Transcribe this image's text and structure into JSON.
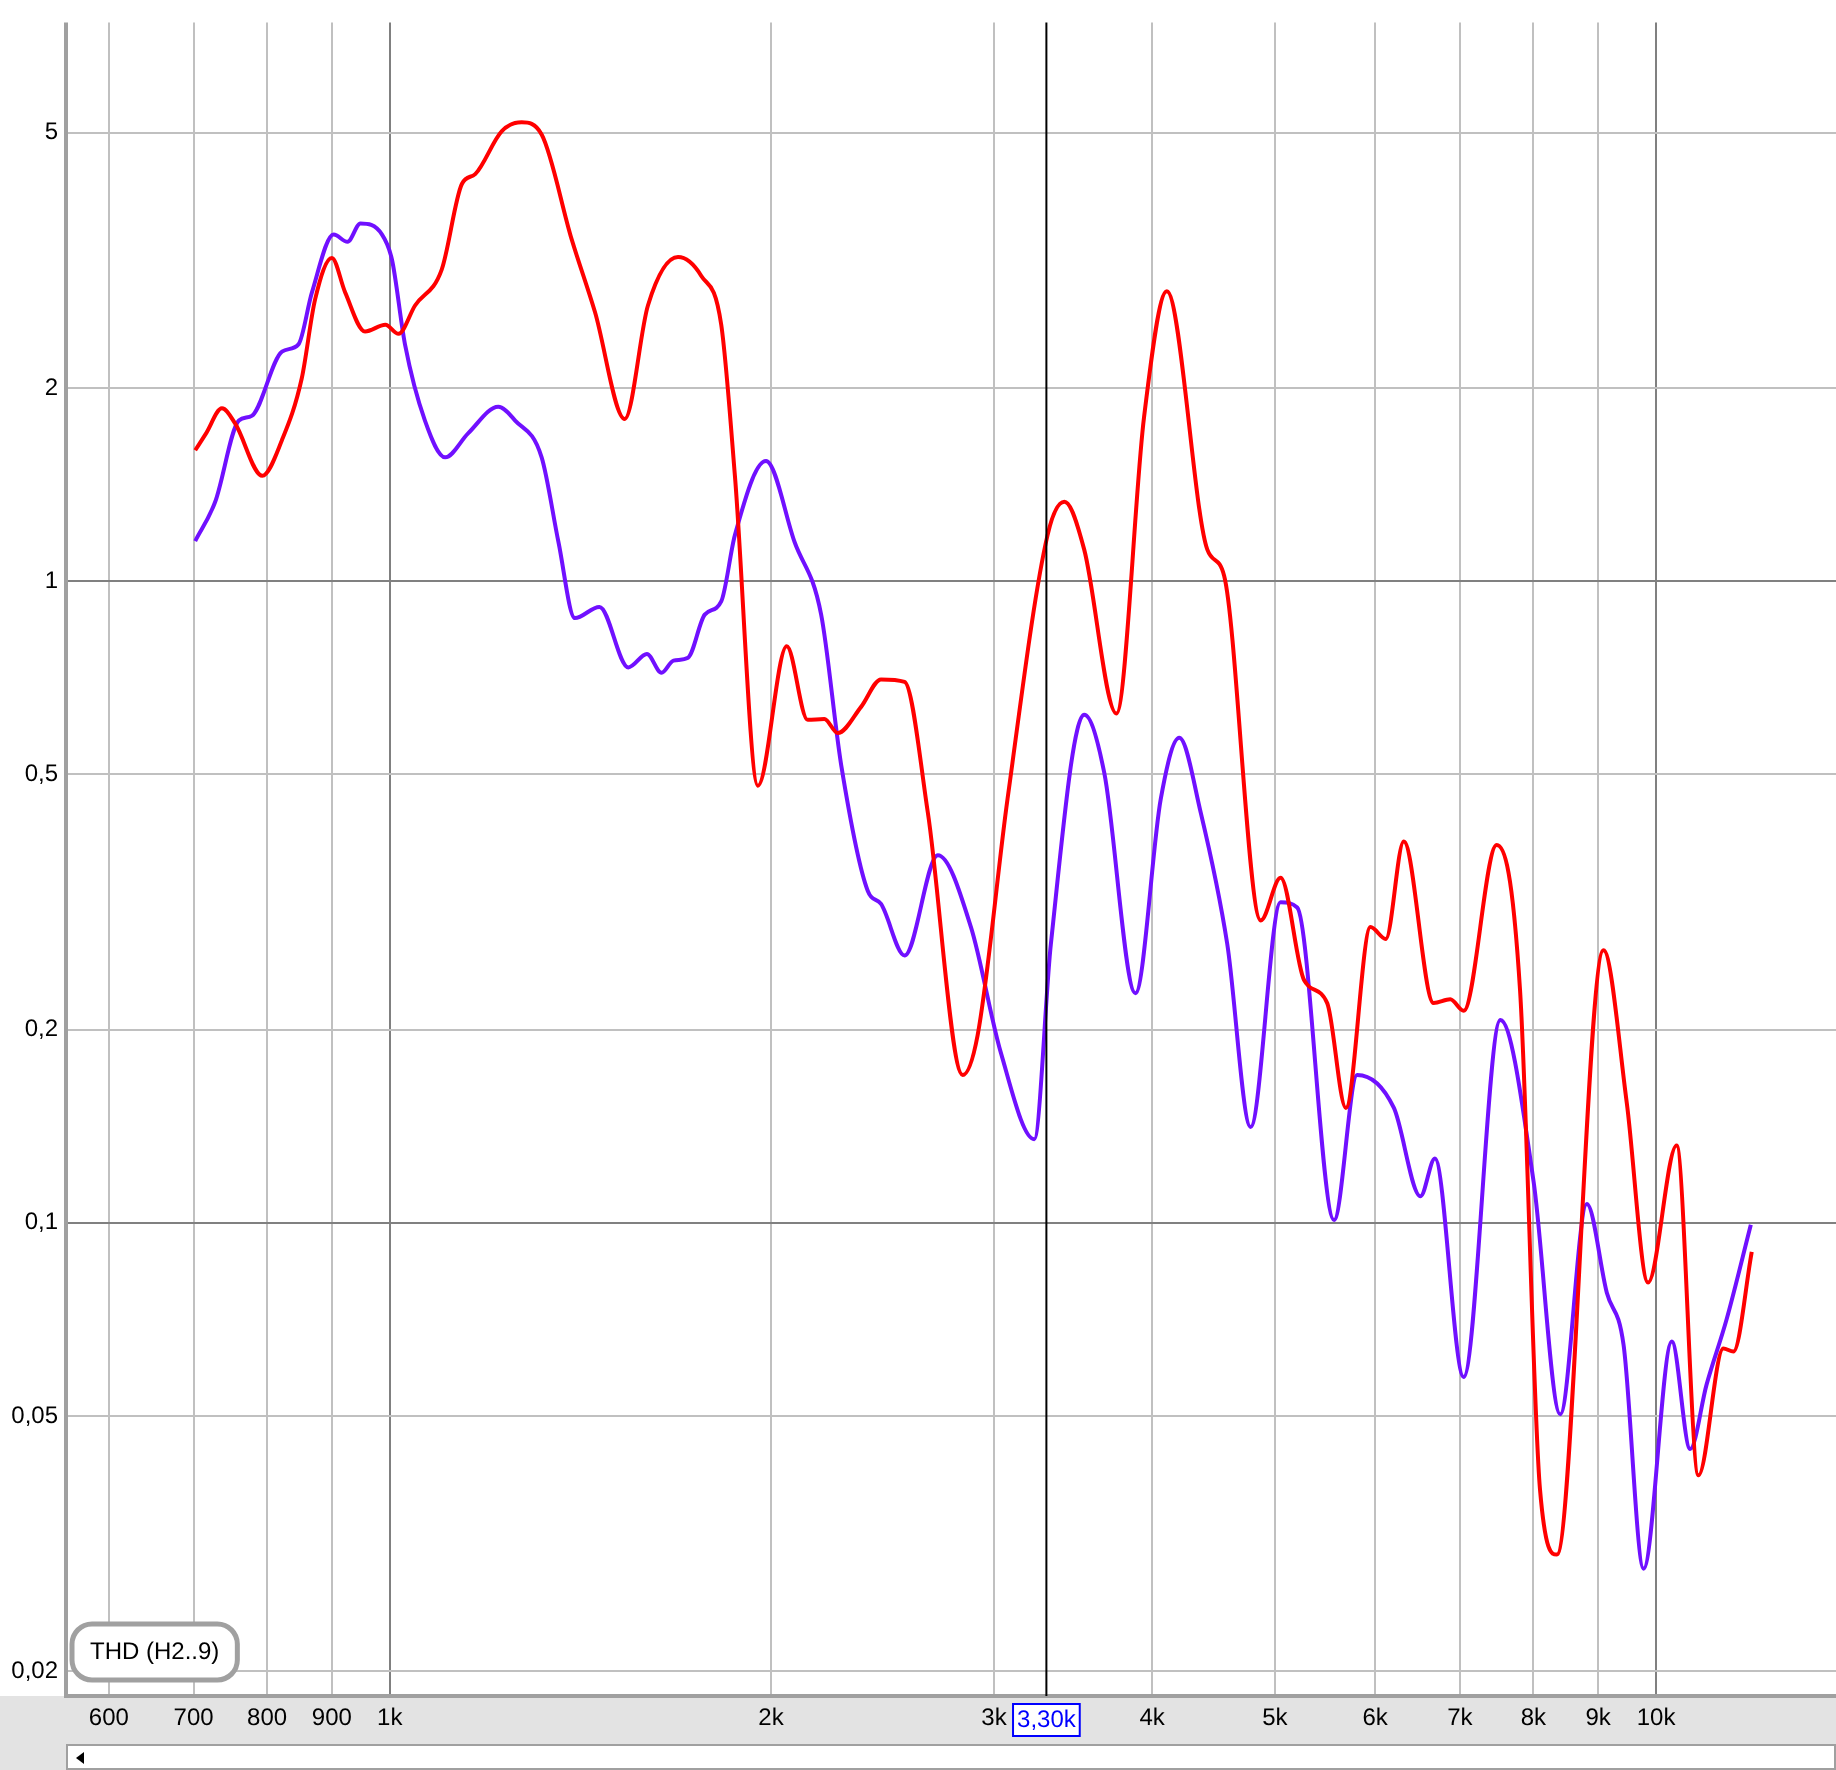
{
  "chart_data": {
    "type": "line",
    "log": "xy",
    "grid": true,
    "marker": "none",
    "line_style": "solid",
    "xlim": [
      555,
      13870
    ],
    "ylim": [
      0.0183,
      7.43
    ],
    "xticks": [
      600,
      700,
      800,
      900,
      {
        "value": 1000,
        "label": "1k"
      },
      {
        "value": 2000,
        "label": "2k"
      },
      {
        "value": 3000,
        "label": "3k"
      },
      {
        "value": 4000,
        "label": "4k"
      },
      {
        "value": 5000,
        "label": "5k"
      },
      {
        "value": 6000,
        "label": "6k"
      },
      {
        "value": 7000,
        "label": "7k"
      },
      {
        "value": 8000,
        "label": "8k"
      },
      {
        "value": 9000,
        "label": "9k"
      },
      {
        "value": 10000,
        "label": "10k"
      }
    ],
    "yticks": [
      {
        "value": 0.02,
        "label": "0,02"
      },
      {
        "value": 0.05,
        "label": "0,05"
      },
      {
        "value": 0.1,
        "label": "0,1"
      },
      {
        "value": 0.2,
        "label": "0,2"
      },
      {
        "value": 0.5,
        "label": "0,5"
      },
      1,
      2,
      5
    ],
    "ref_lines": [
      {
        "axis": "x",
        "value": 3300,
        "label": "3,30k",
        "color": "#000000"
      }
    ],
    "annotations": [
      "THD (H2..9)"
    ],
    "series": [
      {
        "color": "#ff0000",
        "x": [
          702,
          716,
          737,
          755,
          793,
          822,
          852,
          873,
          900,
          922,
          956,
          992,
          1016,
          1047,
          1099,
          1140,
          1168,
          1226,
          1271,
          1318,
          1392,
          1452,
          1533,
          1599,
          1689,
          1762,
          1827,
          1873,
          1953,
          2058,
          2138,
          2204,
          2258,
          2356,
          2443,
          2550,
          2660,
          2834,
          2912,
          3075,
          3307,
          3410,
          3535,
          3748,
          3941,
          4108,
          4422,
          4559,
          4873,
          5052,
          5272,
          5499,
          5689,
          5949,
          6117,
          6320,
          6673,
          6878,
          7047,
          7484,
          7808,
          8097,
          8349,
          9088,
          9480,
          9855,
          10380,
          10800,
          11300,
          11510,
          11900
        ],
        "values": [
          1.6,
          1.7,
          1.86,
          1.76,
          1.46,
          1.66,
          2.07,
          2.75,
          3.19,
          2.82,
          2.45,
          2.51,
          2.43,
          2.69,
          3.06,
          4.16,
          4.31,
          5.03,
          5.19,
          4.97,
          3.41,
          2.63,
          1.79,
          2.69,
          3.2,
          2.99,
          2.51,
          1.46,
          0.48,
          0.792,
          0.608,
          0.61,
          0.58,
          0.637,
          0.703,
          0.697,
          0.436,
          0.17,
          0.196,
          0.458,
          1.18,
          1.33,
          1.12,
          0.622,
          1.8,
          2.83,
          1.12,
          1.02,
          0.296,
          0.345,
          0.239,
          0.22,
          0.151,
          0.289,
          0.277,
          0.393,
          0.22,
          0.223,
          0.214,
          0.388,
          0.231,
          0.0384,
          0.0304,
          0.266,
          0.154,
          0.0807,
          0.132,
          0.0404,
          0.0637,
          0.063,
          0.0901
        ]
      },
      {
        "color": "#7010ff",
        "x": [
          702,
          728,
          760,
          778,
          822,
          847,
          868,
          903,
          926,
          948,
          986,
          1004,
          1028,
          1066,
          1106,
          1153,
          1218,
          1256,
          1318,
          1359,
          1400,
          1464,
          1543,
          1596,
          1639,
          1675,
          1720,
          1773,
          1827,
          1873,
          1982,
          2088,
          2191,
          2273,
          2385,
          2443,
          2550,
          2709,
          2877,
          3038,
          3228,
          3327,
          3535,
          3666,
          3880,
          4063,
          4202,
          4369,
          4585,
          4784,
          5052,
          5207,
          5568,
          5807,
          6208,
          6515,
          6689,
          7047,
          7534,
          8003,
          8401,
          8817,
          9143,
          9426,
          9775,
          10290,
          10640,
          10960,
          11370,
          11880
        ],
        "values": [
          1.155,
          1.33,
          1.78,
          1.81,
          2.28,
          2.34,
          2.82,
          3.47,
          3.38,
          3.61,
          3.47,
          3.17,
          2.34,
          1.78,
          1.56,
          1.7,
          1.87,
          1.78,
          1.56,
          1.15,
          0.876,
          0.912,
          0.734,
          0.77,
          0.72,
          0.752,
          0.76,
          0.887,
          0.93,
          1.18,
          1.54,
          1.15,
          0.887,
          0.515,
          0.329,
          0.314,
          0.261,
          0.374,
          0.289,
          0.184,
          0.135,
          0.272,
          0.619,
          0.503,
          0.228,
          0.458,
          0.57,
          0.436,
          0.272,
          0.141,
          0.316,
          0.31,
          0.101,
          0.17,
          0.151,
          0.11,
          0.126,
          0.0575,
          0.207,
          0.116,
          0.0503,
          0.107,
          0.0778,
          0.0645,
          0.0289,
          0.0653,
          0.0444,
          0.0559,
          0.0708,
          0.0993
        ]
      }
    ]
  }
}
